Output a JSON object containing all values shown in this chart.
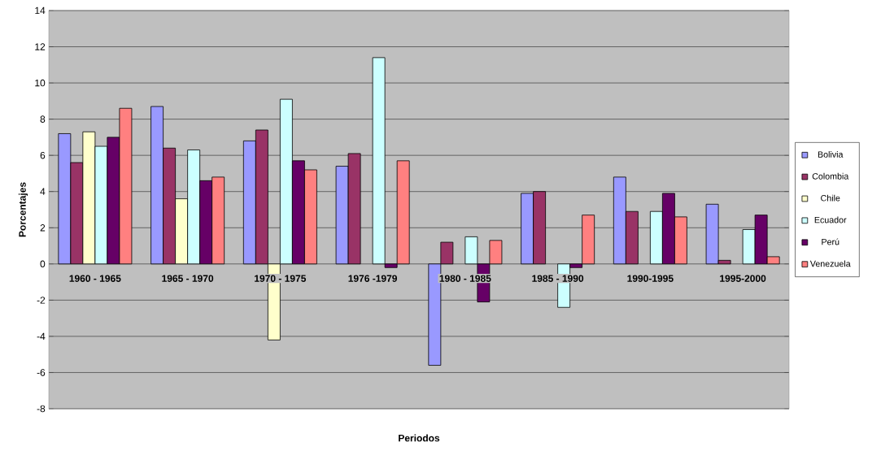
{
  "chart_data": {
    "type": "bar",
    "xlabel": "Periodos",
    "ylabel": "Porcentajes",
    "categories": [
      "1960 - 1965",
      "1965 - 1970",
      "1970 - 1975",
      "1976 -1979",
      "1980 - 1985",
      "1985 - 1990",
      "1990-1995",
      "1995-2000"
    ],
    "series": [
      {
        "name": "Bolivia",
        "color": "#9999ff",
        "values": [
          7.2,
          8.7,
          6.8,
          5.4,
          -5.6,
          3.9,
          4.8,
          3.3
        ]
      },
      {
        "name": "Colombia",
        "color": "#993366",
        "values": [
          5.6,
          6.4,
          7.4,
          6.1,
          1.2,
          4.0,
          2.9,
          0.2
        ]
      },
      {
        "name": "Chile",
        "color": "#ffffcc",
        "values": [
          7.3,
          3.6,
          -4.2,
          null,
          null,
          null,
          null,
          null
        ]
      },
      {
        "name": "Ecuador",
        "color": "#ccffff",
        "values": [
          6.5,
          6.3,
          9.1,
          11.4,
          1.5,
          -2.4,
          2.9,
          1.9
        ]
      },
      {
        "name": "Perú",
        "color": "#660066",
        "values": [
          7.0,
          4.6,
          5.7,
          -0.2,
          -2.1,
          -0.2,
          3.9,
          2.7
        ]
      },
      {
        "name": "Venezuela",
        "color": "#ff8080",
        "values": [
          8.6,
          4.8,
          5.2,
          5.7,
          1.3,
          2.7,
          2.6,
          0.4
        ]
      }
    ],
    "ylim": [
      -8,
      14
    ],
    "yticks": [
      -8,
      -6,
      -4,
      -2,
      0,
      2,
      4,
      6,
      8,
      10,
      12,
      14
    ],
    "grid": "y",
    "legend": "right"
  }
}
